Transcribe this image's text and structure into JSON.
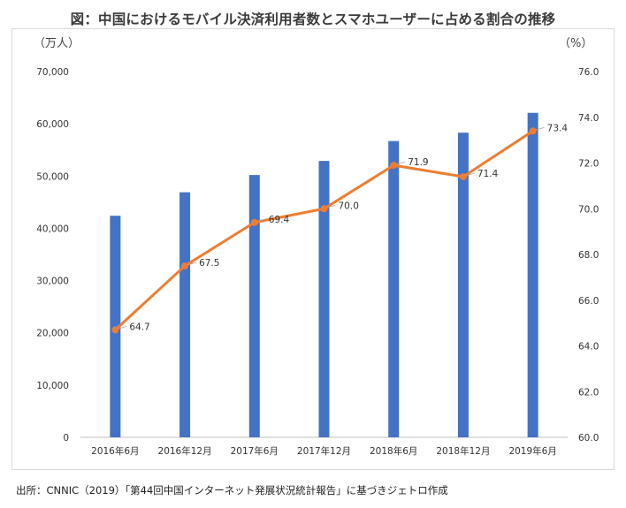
{
  "title": "図：中国におけるモバイル決済利用者数とスマホユーザーに占める割合の推移",
  "source": "出所：CNNIC（2019）「第44回中国インターネット発展状況統計報告」に基づきジェトロ作成",
  "colors": {
    "bar": "#4472c4",
    "line": "#ed7d31"
  },
  "chart_data": {
    "type": "bar",
    "categories": [
      "2016年6月",
      "2016年12月",
      "2017年6月",
      "2017年12月",
      "2018年6月",
      "2018年12月",
      "2019年6月"
    ],
    "series": [
      {
        "type": "bar",
        "axis": "left",
        "values": [
          42400,
          46900,
          50200,
          52900,
          56700,
          58300,
          62100
        ]
      },
      {
        "type": "line",
        "axis": "right",
        "values": [
          64.7,
          67.5,
          69.4,
          70.0,
          71.9,
          71.4,
          73.4
        ],
        "labels": [
          "64.7",
          "67.5",
          "69.4",
          "70.0",
          "71.9",
          "71.4",
          "73.4"
        ]
      }
    ],
    "ylabel": "（万人）",
    "y2label": "（%）",
    "ylim": [
      0,
      70000
    ],
    "y2lim": [
      60.0,
      76.0
    ],
    "yticks": [
      "0",
      "10,000",
      "20,000",
      "30,000",
      "40,000",
      "50,000",
      "60,000",
      "70,000"
    ],
    "y2ticks": [
      "60.0",
      "62.0",
      "64.0",
      "66.0",
      "68.0",
      "70.0",
      "72.0",
      "74.0",
      "76.0"
    ],
    "grid": false,
    "legend": "none"
  }
}
